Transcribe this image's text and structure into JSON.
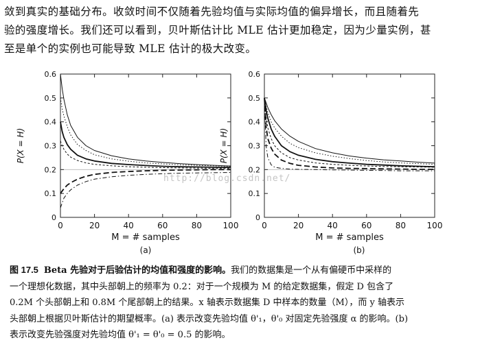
{
  "paragraph": {
    "lines": [
      "敛到真实的基础分布。收敛时间不仅随着先验均值与实际均值的偏异增长，而且随着先",
      "验的强度增长。我们还可以看到，贝叶斯估计比 MLE 估计更加稳定，因为少量实例，甚",
      "至是单个的实例也可能导致 MLE 估计的极大改变。"
    ]
  },
  "watermark": "http://blog.csdn.net/",
  "chart_data": [
    {
      "type": "line",
      "panel_label": "(a)",
      "xlabel": "M = # samples",
      "ylabel": "P(X = H)",
      "xlim": [
        0,
        100
      ],
      "ylim": [
        0,
        0.6
      ],
      "xticks": [
        "0",
        "20",
        "40",
        "60",
        "80",
        "100"
      ],
      "yticks": [
        "0",
        "0.1",
        "0.2",
        "0.3",
        "0.4",
        "0.5",
        "0.6"
      ],
      "reference_line": 0.2,
      "series": [
        {
          "style": "solid-thin",
          "x": [
            0,
            1,
            2,
            4,
            6,
            10,
            15,
            20,
            30,
            40,
            50,
            60,
            70,
            80,
            90,
            100
          ],
          "y": [
            0.6,
            0.54,
            0.495,
            0.43,
            0.385,
            0.335,
            0.3,
            0.28,
            0.258,
            0.245,
            0.236,
            0.23,
            0.225,
            0.221,
            0.218,
            0.215
          ]
        },
        {
          "style": "dotted",
          "x": [
            0,
            1,
            2,
            4,
            6,
            10,
            15,
            20,
            30,
            40,
            50,
            60,
            70,
            80,
            90,
            100
          ],
          "y": [
            0.5,
            0.455,
            0.425,
            0.38,
            0.345,
            0.305,
            0.28,
            0.262,
            0.245,
            0.235,
            0.228,
            0.224,
            0.22,
            0.218,
            0.216,
            0.214
          ]
        },
        {
          "style": "solid-bold",
          "x": [
            0,
            1,
            2,
            4,
            6,
            10,
            15,
            20,
            30,
            40,
            50,
            60,
            70,
            80,
            90,
            100
          ],
          "y": [
            0.4,
            0.36,
            0.335,
            0.305,
            0.285,
            0.26,
            0.245,
            0.236,
            0.226,
            0.221,
            0.217,
            0.214,
            0.212,
            0.211,
            0.21,
            0.209
          ]
        },
        {
          "style": "dashed-fine",
          "x": [
            0,
            1,
            2,
            4,
            6,
            10,
            15,
            20,
            30,
            40,
            50,
            60,
            70,
            80,
            90,
            100
          ],
          "y": [
            0.32,
            0.3,
            0.285,
            0.265,
            0.252,
            0.238,
            0.228,
            0.222,
            0.216,
            0.212,
            0.21,
            0.208,
            0.207,
            0.206,
            0.205,
            0.205
          ]
        },
        {
          "style": "dashed-bold",
          "x": [
            0,
            1,
            2,
            4,
            6,
            10,
            15,
            20,
            30,
            40,
            50,
            60,
            70,
            80,
            90,
            100
          ],
          "y": [
            0.1,
            0.11,
            0.12,
            0.135,
            0.145,
            0.16,
            0.172,
            0.18,
            0.188,
            0.192,
            0.195,
            0.197,
            0.198,
            0.199,
            0.2,
            0.2
          ]
        },
        {
          "style": "dash-dot",
          "x": [
            0,
            1,
            2,
            4,
            6,
            10,
            15,
            20,
            30,
            40,
            50,
            60,
            70,
            80,
            90,
            100
          ],
          "y": [
            0.04,
            0.06,
            0.08,
            0.1,
            0.115,
            0.135,
            0.15,
            0.16,
            0.17,
            0.176,
            0.18,
            0.183,
            0.185,
            0.186,
            0.187,
            0.188
          ]
        }
      ]
    },
    {
      "type": "line",
      "panel_label": "(b)",
      "xlabel": "M = # samples",
      "ylabel": "P(X = H)",
      "xlim": [
        0,
        100
      ],
      "ylim": [
        0,
        0.6
      ],
      "xticks": [
        "0",
        "20",
        "40",
        "60",
        "80",
        "100"
      ],
      "yticks": [
        "0",
        "0.1",
        "0.2",
        "0.3",
        "0.4",
        "0.5",
        "0.6"
      ],
      "reference_line": 0.2,
      "series": [
        {
          "style": "solid-thin",
          "x": [
            0,
            1,
            2,
            4,
            6,
            10,
            15,
            20,
            30,
            40,
            50,
            60,
            70,
            80,
            90,
            100
          ],
          "y": [
            0.5,
            0.48,
            0.46,
            0.43,
            0.405,
            0.37,
            0.34,
            0.318,
            0.288,
            0.27,
            0.257,
            0.248,
            0.241,
            0.236,
            0.231,
            0.227
          ]
        },
        {
          "style": "dotted",
          "x": [
            0,
            1,
            2,
            4,
            6,
            10,
            15,
            20,
            30,
            40,
            50,
            60,
            70,
            80,
            90,
            100
          ],
          "y": [
            0.5,
            0.465,
            0.44,
            0.4,
            0.375,
            0.34,
            0.31,
            0.292,
            0.27,
            0.256,
            0.246,
            0.238,
            0.232,
            0.228,
            0.225,
            0.222
          ]
        },
        {
          "style": "solid-bold",
          "x": [
            0,
            1,
            2,
            4,
            6,
            10,
            15,
            20,
            30,
            40,
            50,
            60,
            70,
            80,
            90,
            100
          ],
          "y": [
            0.5,
            0.45,
            0.415,
            0.37,
            0.34,
            0.3,
            0.275,
            0.26,
            0.243,
            0.233,
            0.227,
            0.222,
            0.219,
            0.216,
            0.214,
            0.212
          ]
        },
        {
          "style": "dashed-fine",
          "x": [
            0,
            1,
            2,
            4,
            6,
            10,
            15,
            20,
            30,
            40,
            50,
            60,
            70,
            80,
            90,
            100
          ],
          "y": [
            0.5,
            0.42,
            0.375,
            0.33,
            0.3,
            0.27,
            0.25,
            0.24,
            0.228,
            0.222,
            0.218,
            0.215,
            0.213,
            0.212,
            0.211,
            0.21
          ]
        },
        {
          "style": "dashed-bold",
          "x": [
            0,
            1,
            2,
            4,
            6,
            10,
            15,
            20,
            30,
            40,
            50,
            60,
            70,
            80,
            90,
            100
          ],
          "y": [
            0.5,
            0.38,
            0.33,
            0.29,
            0.265,
            0.24,
            0.226,
            0.218,
            0.211,
            0.207,
            0.205,
            0.204,
            0.203,
            0.202,
            0.201,
            0.201
          ]
        },
        {
          "style": "dash-dot",
          "x": [
            0,
            1,
            2,
            4,
            6,
            10,
            15,
            20,
            30,
            40,
            50,
            60,
            70,
            80,
            90,
            100
          ],
          "y": [
            0.5,
            0.3,
            0.25,
            0.22,
            0.21,
            0.205,
            0.202,
            0.201,
            0.2,
            0.199,
            0.198,
            0.197,
            0.196,
            0.195,
            0.195,
            0.195
          ]
        }
      ]
    }
  ],
  "caption": {
    "label": "图 17.5",
    "title": "Beta 先验对于后验估计的均值和强度的影响。",
    "line1_rest": "我们的数据集是一个从有偏硬币中采样的",
    "lines": [
      "一个理想化数据，其中头部朝上的频率为 0.2：对于一个规模为 M 的给定数据集，假定 D 包含了",
      "0.2M 个头部朝上和 0.8M 个尾部朝上的结果。x 轴表示数据集 D 中样本的数量（M），而 y 轴表示",
      "头部朝上根据贝叶斯估计的期望概率。(a) 表示改变先验均值 θ'₁，θ'₀ 对固定先验强度 α 的影响。(b)",
      "表示改变先验强度对先验均值 θ'₁ = θ'₀ = 0.5 的影响。"
    ]
  }
}
